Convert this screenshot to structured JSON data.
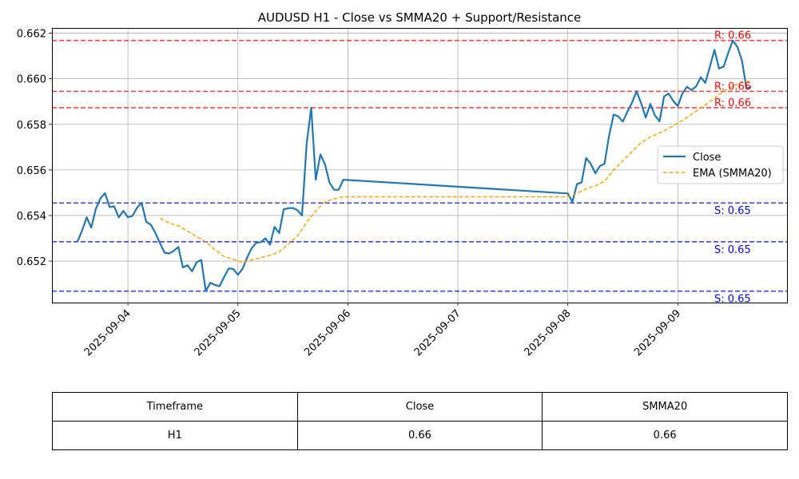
{
  "chart_data": {
    "type": "line",
    "title": "AUDUSD H1 - Close vs SMMA20 + Support/Resistance",
    "xlabel": "",
    "ylabel": "",
    "x_ticks": [
      "2025-09-04",
      "2025-09-05",
      "2025-09-06",
      "2025-09-07",
      "2025-09-08",
      "2025-09-09"
    ],
    "y_ticks": [
      "0.652",
      "0.654",
      "0.656",
      "0.658",
      "0.660",
      "0.662"
    ],
    "xlim": [
      "2025-09-03 07:25",
      "2025-09-09 23:50"
    ],
    "ylim": [
      0.65018,
      0.66223
    ],
    "grid": true,
    "legend": "center-right",
    "series": [
      {
        "name": "Close",
        "color": "#1f77b4",
        "style": "solid",
        "points": [
          [
            "2025-09-03 13:00",
            0.65285
          ],
          [
            "2025-09-03 14:00",
            0.65335
          ],
          [
            "2025-09-03 15:00",
            0.65392
          ],
          [
            "2025-09-03 16:00",
            0.65347
          ],
          [
            "2025-09-03 17:00",
            0.6543
          ],
          [
            "2025-09-03 18:00",
            0.65475
          ],
          [
            "2025-09-03 19:00",
            0.65498
          ],
          [
            "2025-09-03 20:00",
            0.65437
          ],
          [
            "2025-09-03 21:00",
            0.6544
          ],
          [
            "2025-09-03 22:00",
            0.65392
          ],
          [
            "2025-09-03 23:00",
            0.6542
          ],
          [
            "2025-09-04 00:00",
            0.65392
          ],
          [
            "2025-09-04 01:00",
            0.65398
          ],
          [
            "2025-09-04 02:00",
            0.65435
          ],
          [
            "2025-09-04 03:00",
            0.65455
          ],
          [
            "2025-09-04 04:00",
            0.65372
          ],
          [
            "2025-09-04 05:00",
            0.6536
          ],
          [
            "2025-09-04 06:00",
            0.65323
          ],
          [
            "2025-09-04 07:00",
            0.65278
          ],
          [
            "2025-09-04 08:00",
            0.65237
          ],
          [
            "2025-09-04 09:00",
            0.65233
          ],
          [
            "2025-09-04 10:00",
            0.65245
          ],
          [
            "2025-09-04 11:00",
            0.65262
          ],
          [
            "2025-09-04 12:00",
            0.65172
          ],
          [
            "2025-09-04 13:00",
            0.65182
          ],
          [
            "2025-09-04 14:00",
            0.65155
          ],
          [
            "2025-09-04 15:00",
            0.65195
          ],
          [
            "2025-09-04 16:00",
            0.65205
          ],
          [
            "2025-09-04 17:00",
            0.65068
          ],
          [
            "2025-09-04 18:00",
            0.65105
          ],
          [
            "2025-09-04 19:00",
            0.65095
          ],
          [
            "2025-09-04 20:00",
            0.6509
          ],
          [
            "2025-09-04 21:00",
            0.6513
          ],
          [
            "2025-09-04 22:00",
            0.65168
          ],
          [
            "2025-09-04 23:00",
            0.65165
          ],
          [
            "2025-09-05 00:00",
            0.6514
          ],
          [
            "2025-09-05 01:00",
            0.65165
          ],
          [
            "2025-09-05 02:00",
            0.65215
          ],
          [
            "2025-09-05 03:00",
            0.65257
          ],
          [
            "2025-09-05 04:00",
            0.6528
          ],
          [
            "2025-09-05 05:00",
            0.65283
          ],
          [
            "2025-09-05 06:00",
            0.653
          ],
          [
            "2025-09-05 07:00",
            0.65272
          ],
          [
            "2025-09-05 08:00",
            0.6535
          ],
          [
            "2025-09-05 09:00",
            0.65323
          ],
          [
            "2025-09-05 10:00",
            0.65427
          ],
          [
            "2025-09-05 11:00",
            0.65432
          ],
          [
            "2025-09-05 12:00",
            0.65433
          ],
          [
            "2025-09-05 13:00",
            0.65423
          ],
          [
            "2025-09-05 14:00",
            0.654
          ],
          [
            "2025-09-05 15:00",
            0.65715
          ],
          [
            "2025-09-05 16:00",
            0.65873
          ],
          [
            "2025-09-05 17:00",
            0.65557
          ],
          [
            "2025-09-05 18:00",
            0.65668
          ],
          [
            "2025-09-05 19:00",
            0.65625
          ],
          [
            "2025-09-05 20:00",
            0.65545
          ],
          [
            "2025-09-05 21:00",
            0.65513
          ],
          [
            "2025-09-05 22:00",
            0.65513
          ],
          [
            "2025-09-05 23:00",
            0.65557
          ],
          [
            "2025-09-08 00:00",
            0.65497
          ],
          [
            "2025-09-08 01:00",
            0.6546
          ],
          [
            "2025-09-08 02:00",
            0.65538
          ],
          [
            "2025-09-08 03:00",
            0.65545
          ],
          [
            "2025-09-08 04:00",
            0.65652
          ],
          [
            "2025-09-08 05:00",
            0.65627
          ],
          [
            "2025-09-08 06:00",
            0.65585
          ],
          [
            "2025-09-08 07:00",
            0.65617
          ],
          [
            "2025-09-08 08:00",
            0.65627
          ],
          [
            "2025-09-08 09:00",
            0.6575
          ],
          [
            "2025-09-08 10:00",
            0.65843
          ],
          [
            "2025-09-08 11:00",
            0.65835
          ],
          [
            "2025-09-08 12:00",
            0.65812
          ],
          [
            "2025-09-08 13:00",
            0.65855
          ],
          [
            "2025-09-08 14:00",
            0.65895
          ],
          [
            "2025-09-08 15:00",
            0.65945
          ],
          [
            "2025-09-08 16:00",
            0.65893
          ],
          [
            "2025-09-08 17:00",
            0.6583
          ],
          [
            "2025-09-08 18:00",
            0.6589
          ],
          [
            "2025-09-08 19:00",
            0.6584
          ],
          [
            "2025-09-08 20:00",
            0.65813
          ],
          [
            "2025-09-08 21:00",
            0.65922
          ],
          [
            "2025-09-08 22:00",
            0.65935
          ],
          [
            "2025-09-08 23:00",
            0.65903
          ],
          [
            "2025-09-09 00:00",
            0.6588
          ],
          [
            "2025-09-09 01:00",
            0.65935
          ],
          [
            "2025-09-09 02:00",
            0.65965
          ],
          [
            "2025-09-09 03:00",
            0.6595
          ],
          [
            "2025-09-09 04:00",
            0.65967
          ],
          [
            "2025-09-09 05:00",
            0.66007
          ],
          [
            "2025-09-09 06:00",
            0.65982
          ],
          [
            "2025-09-09 07:00",
            0.66053
          ],
          [
            "2025-09-09 08:00",
            0.66127
          ],
          [
            "2025-09-09 09:00",
            0.66045
          ],
          [
            "2025-09-09 10:00",
            0.66053
          ],
          [
            "2025-09-09 11:00",
            0.66113
          ],
          [
            "2025-09-09 12:00",
            0.66168
          ],
          [
            "2025-09-09 13:00",
            0.6614
          ],
          [
            "2025-09-09 14:00",
            0.6608
          ],
          [
            "2025-09-09 15:00",
            0.65957
          ],
          [
            "2025-09-09 16:00",
            0.65963
          ]
        ]
      },
      {
        "name": "EMA (SMMA20)",
        "color": "#ffa500",
        "style": "dashed",
        "points": [
          [
            "2025-09-04 07:00",
            0.65387
          ],
          [
            "2025-09-04 09:00",
            0.65367
          ],
          [
            "2025-09-04 11:00",
            0.65355
          ],
          [
            "2025-09-04 13:00",
            0.65332
          ],
          [
            "2025-09-04 15:00",
            0.65307
          ],
          [
            "2025-09-04 17:00",
            0.65285
          ],
          [
            "2025-09-04 19:00",
            0.6525
          ],
          [
            "2025-09-04 21:00",
            0.6522
          ],
          [
            "2025-09-04 23:00",
            0.65208
          ],
          [
            "2025-09-05 01:00",
            0.65195
          ],
          [
            "2025-09-05 03:00",
            0.65205
          ],
          [
            "2025-09-05 05:00",
            0.65215
          ],
          [
            "2025-09-05 07:00",
            0.65225
          ],
          [
            "2025-09-05 09:00",
            0.6524
          ],
          [
            "2025-09-05 11:00",
            0.65275
          ],
          [
            "2025-09-05 13:00",
            0.6531
          ],
          [
            "2025-09-05 15:00",
            0.6537
          ],
          [
            "2025-09-05 17:00",
            0.6542
          ],
          [
            "2025-09-05 19:00",
            0.6546
          ],
          [
            "2025-09-05 21:00",
            0.65473
          ],
          [
            "2025-09-05 23:00",
            0.65482
          ],
          [
            "2025-09-08 00:00",
            0.65482
          ],
          [
            "2025-09-08 02:00",
            0.65497
          ],
          [
            "2025-09-08 04:00",
            0.65517
          ],
          [
            "2025-09-08 06:00",
            0.6553
          ],
          [
            "2025-09-08 08:00",
            0.6555
          ],
          [
            "2025-09-08 10:00",
            0.656
          ],
          [
            "2025-09-08 12:00",
            0.6564
          ],
          [
            "2025-09-08 14:00",
            0.6568
          ],
          [
            "2025-09-08 16:00",
            0.6572
          ],
          [
            "2025-09-08 18:00",
            0.65745
          ],
          [
            "2025-09-08 20:00",
            0.65762
          ],
          [
            "2025-09-08 22:00",
            0.65782
          ],
          [
            "2025-09-09 00:00",
            0.65805
          ],
          [
            "2025-09-09 02:00",
            0.6583
          ],
          [
            "2025-09-09 04:00",
            0.65858
          ],
          [
            "2025-09-09 06:00",
            0.65885
          ],
          [
            "2025-09-09 08:00",
            0.65915
          ],
          [
            "2025-09-09 10:00",
            0.65945
          ],
          [
            "2025-09-09 12:00",
            0.65968
          ],
          [
            "2025-09-09 14:00",
            0.65985
          ],
          [
            "2025-09-09 16:00",
            0.6599
          ]
        ]
      }
    ],
    "levels": [
      {
        "kind": "resistance",
        "value": 0.66168,
        "label": "R: 0.66",
        "color": "#ff0000"
      },
      {
        "kind": "resistance",
        "value": 0.65945,
        "label": "R: 0.66",
        "color": "#ff0000"
      },
      {
        "kind": "resistance",
        "value": 0.65873,
        "label": "R: 0.66",
        "color": "#ff0000"
      },
      {
        "kind": "support",
        "value": 0.65455,
        "label": "S: 0.65",
        "color": "#0000ff"
      },
      {
        "kind": "support",
        "value": 0.65285,
        "label": "S: 0.65",
        "color": "#0000ff"
      },
      {
        "kind": "support",
        "value": 0.65068,
        "label": "S: 0.65",
        "color": "#0000ff"
      }
    ]
  },
  "table": {
    "headers": [
      "Timeframe",
      "Close",
      "SMMA20"
    ],
    "row": [
      "H1",
      "0.66",
      "0.66"
    ]
  }
}
